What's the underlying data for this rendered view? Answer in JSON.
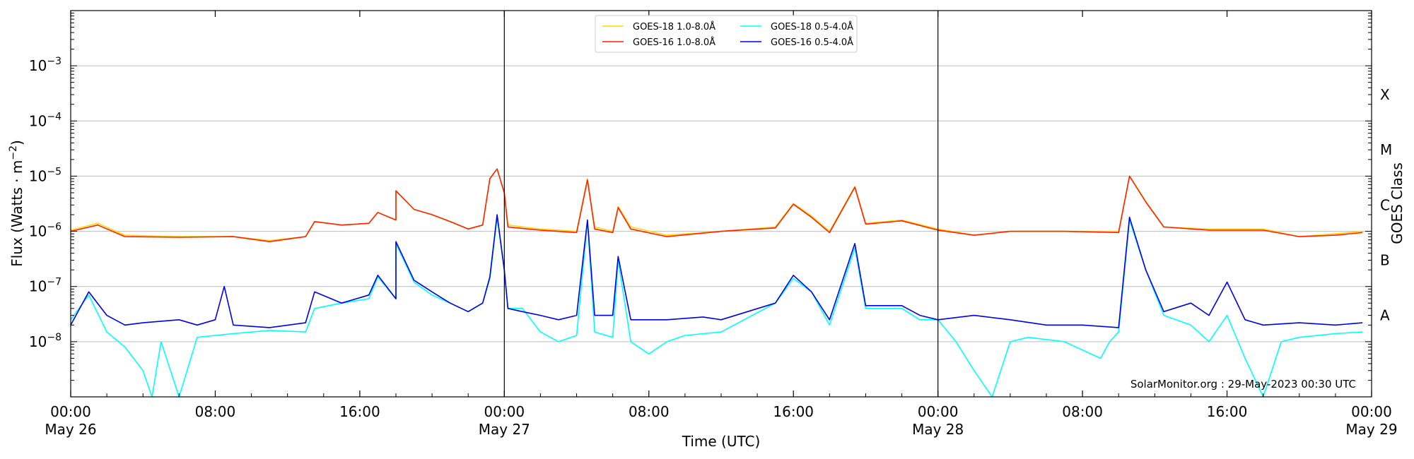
{
  "chart_data": {
    "type": "line",
    "title": "",
    "xlabel": "Time (UTC)",
    "ylabel_main": "Flux (Watts · m",
    "ylabel_sup": "−2",
    "ylabel_close": ")",
    "ylabel_right": "GOES Class",
    "yscale": "log",
    "ylim": [
      1e-09,
      0.01
    ],
    "xlim_hours": [
      0,
      72
    ],
    "grid": "horizontal at decades",
    "legend_position": "top-center",
    "watermark": "SolarMonitor.org : 29-May-2023 00:30 UTC",
    "x_ticks": [
      {
        "hour": 0,
        "time": "00:00",
        "date": "May 26"
      },
      {
        "hour": 8,
        "time": "08:00",
        "date": ""
      },
      {
        "hour": 16,
        "time": "16:00",
        "date": ""
      },
      {
        "hour": 24,
        "time": "00:00",
        "date": "May 27"
      },
      {
        "hour": 32,
        "time": "08:00",
        "date": ""
      },
      {
        "hour": 40,
        "time": "16:00",
        "date": ""
      },
      {
        "hour": 48,
        "time": "00:00",
        "date": "May 28"
      },
      {
        "hour": 56,
        "time": "08:00",
        "date": ""
      },
      {
        "hour": 64,
        "time": "16:00",
        "date": ""
      },
      {
        "hour": 72,
        "time": "00:00",
        "date": "May 29"
      }
    ],
    "day_boundaries_hours": [
      24,
      48
    ],
    "y_ticks": [
      {
        "value": 1e-08,
        "base": "10",
        "exp": "−8"
      },
      {
        "value": 1e-07,
        "base": "10",
        "exp": "−7"
      },
      {
        "value": 1e-06,
        "base": "10",
        "exp": "−6"
      },
      {
        "value": 1e-05,
        "base": "10",
        "exp": "−5"
      },
      {
        "value": 0.0001,
        "base": "10",
        "exp": "−4"
      },
      {
        "value": 0.001,
        "base": "10",
        "exp": "−3"
      }
    ],
    "goes_classes": [
      {
        "label": "A",
        "flux": 3e-08
      },
      {
        "label": "B",
        "flux": 3e-07
      },
      {
        "label": "C",
        "flux": 3e-06
      },
      {
        "label": "M",
        "flux": 3e-05
      },
      {
        "label": "X",
        "flux": 0.0003
      }
    ],
    "series": [
      {
        "name": "GOES-18 1.0-8.0Å",
        "color": "#ffd700",
        "points": [
          [
            0,
            1.05e-06
          ],
          [
            1.5,
            1.4e-06
          ],
          [
            3,
            8.5e-07
          ],
          [
            6,
            8e-07
          ],
          [
            9,
            8e-07
          ],
          [
            11,
            6.8e-07
          ],
          [
            13,
            8e-07
          ],
          [
            13.5,
            1.5e-06
          ],
          [
            15,
            1.3e-06
          ],
          [
            16.5,
            1.4e-06
          ],
          [
            17,
            2.2e-06
          ],
          [
            18,
            1.6e-06
          ],
          [
            18,
            5.5e-06
          ],
          [
            19,
            2.5e-06
          ],
          [
            20,
            2e-06
          ],
          [
            21,
            1.5e-06
          ],
          [
            22,
            1.1e-06
          ],
          [
            22.8,
            1.3e-06
          ],
          [
            23.2,
            9e-06
          ],
          [
            23.6,
            1.35e-05
          ],
          [
            24,
            5e-06
          ],
          [
            24.2,
            1.3e-06
          ],
          [
            26,
            1.1e-06
          ],
          [
            28,
            1e-06
          ],
          [
            28.6,
            9e-06
          ],
          [
            29,
            1.2e-06
          ],
          [
            30,
            1e-06
          ],
          [
            30.3,
            2.8e-06
          ],
          [
            31,
            1.2e-06
          ],
          [
            33,
            8.5e-07
          ],
          [
            36,
            1e-06
          ],
          [
            39,
            1.2e-06
          ],
          [
            40,
            3.2e-06
          ],
          [
            41,
            1.9e-06
          ],
          [
            42,
            1e-06
          ],
          [
            43.4,
            6.5e-06
          ],
          [
            44,
            1.4e-06
          ],
          [
            46,
            1.6e-06
          ],
          [
            48,
            1.1e-06
          ],
          [
            50,
            8.5e-07
          ],
          [
            52,
            1e-06
          ],
          [
            55,
            1e-06
          ],
          [
            58,
            1e-06
          ],
          [
            58.6,
            1e-05
          ],
          [
            59.5,
            3.5e-06
          ],
          [
            60.5,
            1.2e-06
          ],
          [
            63,
            1.1e-06
          ],
          [
            66,
            1.1e-06
          ],
          [
            68,
            8e-07
          ],
          [
            70,
            9e-07
          ],
          [
            71.5,
            1e-06
          ]
        ]
      },
      {
        "name": "GOES-16 1.0-8.0Å",
        "color": "#ff2200",
        "points": [
          [
            0,
            1e-06
          ],
          [
            1.5,
            1.3e-06
          ],
          [
            3,
            8e-07
          ],
          [
            6,
            7.8e-07
          ],
          [
            9,
            8e-07
          ],
          [
            11,
            6.5e-07
          ],
          [
            13,
            8e-07
          ],
          [
            13.5,
            1.5e-06
          ],
          [
            15,
            1.3e-06
          ],
          [
            16.5,
            1.4e-06
          ],
          [
            17,
            2.2e-06
          ],
          [
            18,
            1.6e-06
          ],
          [
            18,
            5.4e-06
          ],
          [
            19,
            2.5e-06
          ],
          [
            20,
            2e-06
          ],
          [
            21,
            1.5e-06
          ],
          [
            22,
            1.1e-06
          ],
          [
            22.8,
            1.3e-06
          ],
          [
            23.2,
            9e-06
          ],
          [
            23.6,
            1.35e-05
          ],
          [
            24,
            5e-06
          ],
          [
            24.2,
            1.2e-06
          ],
          [
            26,
            1.05e-06
          ],
          [
            28,
            9.5e-07
          ],
          [
            28.6,
            8.5e-06
          ],
          [
            29,
            1.1e-06
          ],
          [
            30,
            9.5e-07
          ],
          [
            30.3,
            2.7e-06
          ],
          [
            31,
            1.1e-06
          ],
          [
            33,
            8e-07
          ],
          [
            36,
            1e-06
          ],
          [
            39,
            1.15e-06
          ],
          [
            40,
            3.1e-06
          ],
          [
            41,
            1.8e-06
          ],
          [
            42,
            9.5e-07
          ],
          [
            43.4,
            6.3e-06
          ],
          [
            44,
            1.35e-06
          ],
          [
            46,
            1.55e-06
          ],
          [
            48,
            1.05e-06
          ],
          [
            50,
            8.5e-07
          ],
          [
            52,
            1e-06
          ],
          [
            55,
            1e-06
          ],
          [
            58,
            9.5e-07
          ],
          [
            58.6,
            1e-05
          ],
          [
            59.5,
            3.4e-06
          ],
          [
            60.5,
            1.2e-06
          ],
          [
            63,
            1.05e-06
          ],
          [
            66,
            1.05e-06
          ],
          [
            68,
            8e-07
          ],
          [
            70,
            8.5e-07
          ],
          [
            71.5,
            9.5e-07
          ]
        ]
      },
      {
        "name": "GOES-18 0.5-4.0Å",
        "color": "#00ffff",
        "points": [
          [
            0,
            2.5e-08
          ],
          [
            1,
            7e-08
          ],
          [
            2,
            1.5e-08
          ],
          [
            3,
            8e-09
          ],
          [
            4,
            3e-09
          ],
          [
            4.5,
            1e-09
          ],
          [
            5,
            1e-08
          ],
          [
            6,
            1e-09
          ],
          [
            7,
            1.2e-08
          ],
          [
            9,
            1.4e-08
          ],
          [
            11,
            1.6e-08
          ],
          [
            13,
            1.5e-08
          ],
          [
            13.5,
            4e-08
          ],
          [
            15,
            5e-08
          ],
          [
            16.5,
            6e-08
          ],
          [
            17,
            1.5e-07
          ],
          [
            18,
            6e-08
          ],
          [
            18,
            6e-07
          ],
          [
            19,
            1.2e-07
          ],
          [
            20,
            7e-08
          ],
          [
            21,
            5e-08
          ],
          [
            22,
            3.5e-08
          ],
          [
            22.8,
            5e-08
          ],
          [
            23.2,
            1.4e-07
          ],
          [
            23.6,
            1.8e-06
          ],
          [
            24,
            2e-07
          ],
          [
            24.2,
            4e-08
          ],
          [
            25,
            4e-08
          ],
          [
            26,
            1.5e-08
          ],
          [
            27,
            1e-08
          ],
          [
            28,
            1.3e-08
          ],
          [
            28.6,
            1.5e-06
          ],
          [
            29,
            1.5e-08
          ],
          [
            30,
            1.2e-08
          ],
          [
            30.3,
            3e-07
          ],
          [
            31,
            1e-08
          ],
          [
            32,
            6e-09
          ],
          [
            33,
            1e-08
          ],
          [
            34,
            1.3e-08
          ],
          [
            36,
            1.5e-08
          ],
          [
            39,
            5e-08
          ],
          [
            40,
            1.4e-07
          ],
          [
            41,
            8e-08
          ],
          [
            42,
            2e-08
          ],
          [
            43.4,
            5e-07
          ],
          [
            44,
            4e-08
          ],
          [
            46,
            4e-08
          ],
          [
            47,
            2.5e-08
          ],
          [
            48,
            2.5e-08
          ],
          [
            49,
            1e-08
          ],
          [
            50,
            3e-09
          ],
          [
            51,
            1e-09
          ],
          [
            52,
            1e-08
          ],
          [
            53,
            1.2e-08
          ],
          [
            55,
            1e-08
          ],
          [
            57,
            5e-09
          ],
          [
            57.5,
            1e-08
          ],
          [
            58,
            1.5e-08
          ],
          [
            58.6,
            1.6e-06
          ],
          [
            59.5,
            2e-07
          ],
          [
            60.5,
            3e-08
          ],
          [
            62,
            2e-08
          ],
          [
            63,
            1e-08
          ],
          [
            64,
            3e-08
          ],
          [
            65,
            5e-09
          ],
          [
            66,
            1e-09
          ],
          [
            67,
            1e-08
          ],
          [
            68,
            1.2e-08
          ],
          [
            70,
            1.4e-08
          ],
          [
            71.5,
            1.5e-08
          ]
        ]
      },
      {
        "name": "GOES-16 0.5-4.0Å",
        "color": "#0000ee",
        "points": [
          [
            0,
            2e-08
          ],
          [
            1,
            8e-08
          ],
          [
            2,
            3e-08
          ],
          [
            3,
            2e-08
          ],
          [
            4,
            2.2e-08
          ],
          [
            6,
            2.5e-08
          ],
          [
            7,
            2e-08
          ],
          [
            8,
            2.5e-08
          ],
          [
            8.5,
            1e-07
          ],
          [
            9,
            2e-08
          ],
          [
            11,
            1.8e-08
          ],
          [
            13,
            2.2e-08
          ],
          [
            13.5,
            8e-08
          ],
          [
            15,
            5e-08
          ],
          [
            16.5,
            7e-08
          ],
          [
            17,
            1.6e-07
          ],
          [
            18,
            6e-08
          ],
          [
            18,
            6.5e-07
          ],
          [
            19,
            1.3e-07
          ],
          [
            20,
            8e-08
          ],
          [
            21,
            5e-08
          ],
          [
            22,
            3.5e-08
          ],
          [
            22.8,
            5e-08
          ],
          [
            23.2,
            1.5e-07
          ],
          [
            23.6,
            2e-06
          ],
          [
            24,
            2e-07
          ],
          [
            24.2,
            4e-08
          ],
          [
            25,
            3.5e-08
          ],
          [
            26,
            3e-08
          ],
          [
            27,
            2.5e-08
          ],
          [
            28,
            3e-08
          ],
          [
            28.6,
            1.6e-06
          ],
          [
            29,
            3e-08
          ],
          [
            30,
            3e-08
          ],
          [
            30.3,
            3.5e-07
          ],
          [
            31,
            2.5e-08
          ],
          [
            33,
            2.5e-08
          ],
          [
            35,
            2.8e-08
          ],
          [
            36,
            2.5e-08
          ],
          [
            39,
            5e-08
          ],
          [
            40,
            1.6e-07
          ],
          [
            41,
            8e-08
          ],
          [
            42,
            2.5e-08
          ],
          [
            43.4,
            6e-07
          ],
          [
            44,
            4.5e-08
          ],
          [
            46,
            4.5e-08
          ],
          [
            47,
            3e-08
          ],
          [
            48,
            2.5e-08
          ],
          [
            50,
            3e-08
          ],
          [
            52,
            2.5e-08
          ],
          [
            54,
            2e-08
          ],
          [
            56,
            2e-08
          ],
          [
            58,
            1.8e-08
          ],
          [
            58.6,
            1.8e-06
          ],
          [
            59.5,
            2e-07
          ],
          [
            60.5,
            3.5e-08
          ],
          [
            62,
            5e-08
          ],
          [
            63,
            3e-08
          ],
          [
            64,
            1.2e-07
          ],
          [
            65,
            2.5e-08
          ],
          [
            66,
            2e-08
          ],
          [
            68,
            2.2e-08
          ],
          [
            70,
            2e-08
          ],
          [
            71.5,
            2.2e-08
          ]
        ]
      }
    ]
  }
}
